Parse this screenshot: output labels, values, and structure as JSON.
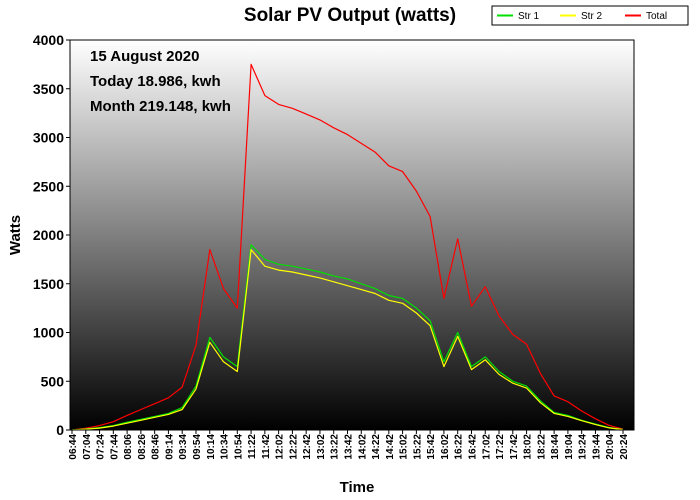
{
  "chart_data": {
    "type": "line",
    "title": "Solar PV Output (watts)",
    "xlabel": "Time",
    "ylabel": "Watts",
    "ylim": [
      0,
      4000
    ],
    "yticks": [
      0,
      500,
      1000,
      1500,
      2000,
      2500,
      3000,
      3500,
      4000
    ],
    "grid": false,
    "legend_position": "top-right",
    "annotations": [
      "15 August 2020",
      "Today 18.986, kwh",
      "Month 219.148, kwh"
    ],
    "x": [
      "06:44",
      "07:04",
      "07:24",
      "07:44",
      "08:06",
      "08:26",
      "08:46",
      "09:14",
      "09:34",
      "09:54",
      "10:14",
      "10:34",
      "10:54",
      "11:22",
      "11:42",
      "12:02",
      "12:22",
      "12:42",
      "13:02",
      "13:22",
      "13:42",
      "14:02",
      "14:22",
      "14:42",
      "15:02",
      "15:22",
      "15:42",
      "16:02",
      "16:22",
      "16:42",
      "17:02",
      "17:22",
      "17:42",
      "18:02",
      "18:22",
      "18:44",
      "19:04",
      "19:24",
      "19:44",
      "20:04",
      "20:24"
    ],
    "series": [
      {
        "name": "Str 1",
        "color": "#00e000",
        "values": [
          0,
          10,
          25,
          45,
          80,
          110,
          140,
          170,
          230,
          450,
          950,
          750,
          650,
          1900,
          1750,
          1700,
          1680,
          1650,
          1620,
          1580,
          1550,
          1500,
          1450,
          1380,
          1350,
          1250,
          1120,
          700,
          1000,
          650,
          750,
          600,
          500,
          450,
          300,
          180,
          150,
          100,
          60,
          25,
          5
        ]
      },
      {
        "name": "Str 2",
        "color": "#ffff00",
        "values": [
          0,
          8,
          20,
          40,
          70,
          100,
          130,
          160,
          210,
          420,
          900,
          700,
          600,
          1850,
          1680,
          1640,
          1620,
          1590,
          1560,
          1520,
          1480,
          1440,
          1400,
          1330,
          1300,
          1200,
          1070,
          650,
          960,
          620,
          720,
          570,
          480,
          430,
          280,
          170,
          140,
          95,
          55,
          22,
          4
        ]
      },
      {
        "name": "Total",
        "color": "#ff0000",
        "values": [
          0,
          18,
          45,
          85,
          150,
          210,
          270,
          330,
          440,
          870,
          1850,
          1450,
          1250,
          3750,
          3430,
          3340,
          3300,
          3240,
          3180,
          3100,
          3030,
          2940,
          2850,
          2710,
          2650,
          2450,
          2190,
          1350,
          1960,
          1270,
          1470,
          1170,
          980,
          880,
          580,
          350,
          290,
          195,
          115,
          47,
          9
        ]
      }
    ]
  }
}
